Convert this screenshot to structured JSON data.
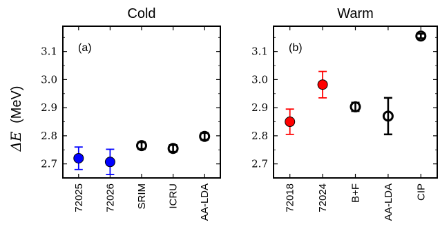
{
  "y_axis_label_symbol": "ΔE",
  "y_axis_label_unit": "(MeV)",
  "chart_data": [
    {
      "type": "scatter",
      "title": "Cold",
      "panel_label": "(a)",
      "ylabel": "ΔE (MeV)",
      "ylim": [
        2.65,
        3.19
      ],
      "yticks": [
        "2.7",
        "2.8",
        "2.9",
        "3.0",
        "3.1"
      ],
      "categories": [
        "72025",
        "72026",
        "SRIM",
        "ICRU",
        "AA-LDA"
      ],
      "points": [
        {
          "label": "72025",
          "y": 2.72,
          "err": 0.04,
          "style": "filled",
          "color": "#0000ff"
        },
        {
          "label": "72026",
          "y": 2.707,
          "err": 0.045,
          "style": "filled",
          "color": "#0000ff"
        },
        {
          "label": "SRIM",
          "y": 2.765,
          "err": 0.012,
          "style": "open",
          "color": "#000000"
        },
        {
          "label": "ICRU",
          "y": 2.755,
          "err": 0.012,
          "style": "open",
          "color": "#000000"
        },
        {
          "label": "AA-LDA",
          "y": 2.798,
          "err": 0.012,
          "style": "open",
          "color": "#000000"
        }
      ]
    },
    {
      "type": "scatter",
      "title": "Warm",
      "panel_label": "(b)",
      "ylabel": "ΔE (MeV)",
      "ylim": [
        2.65,
        3.19
      ],
      "yticks": [
        "2.7",
        "2.8",
        "2.9",
        "3.0",
        "3.1"
      ],
      "categories": [
        "72018",
        "72024",
        "B+F",
        "AA-LDA",
        "CIP"
      ],
      "points": [
        {
          "label": "72018",
          "y": 2.85,
          "err": 0.045,
          "style": "filled",
          "color": "#ff0000"
        },
        {
          "label": "72024",
          "y": 2.982,
          "err": 0.047,
          "style": "filled",
          "color": "#ff0000"
        },
        {
          "label": "B+F",
          "y": 2.903,
          "err": 0.015,
          "style": "open",
          "color": "#000000"
        },
        {
          "label": "AA-LDA",
          "y": 2.87,
          "err": 0.065,
          "style": "open",
          "color": "#000000"
        },
        {
          "label": "CIP",
          "y": 3.155,
          "err": 0.008,
          "style": "open",
          "color": "#000000"
        }
      ]
    }
  ]
}
